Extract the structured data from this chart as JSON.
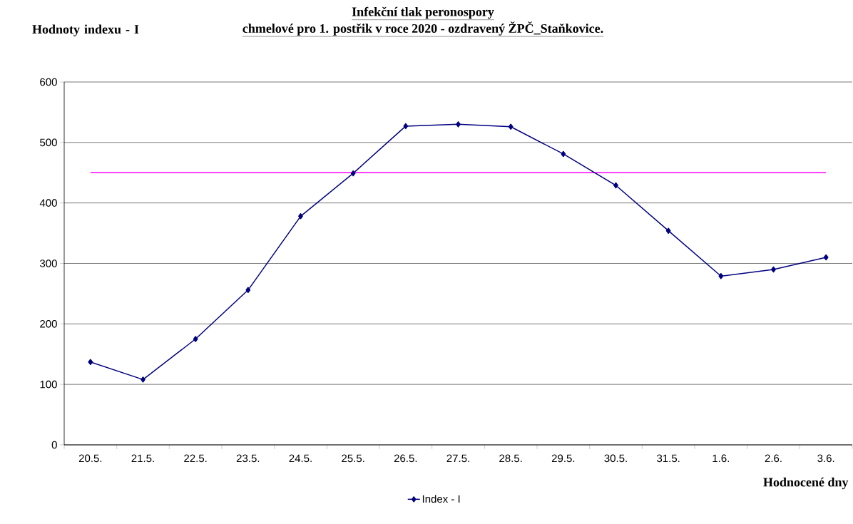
{
  "chart_data": {
    "type": "line",
    "title": "Infekční tlak peronospory",
    "subtitle": "chmelové pro 1. postřik v roce 2020 - ozdravený ŽPČ_Staňkovice.",
    "ylabel": "Hodnoty indexu - I",
    "xlabel": "Hodnocené dny",
    "categories": [
      "20.5.",
      "21.5.",
      "22.5.",
      "23.5.",
      "24.5.",
      "25.5.",
      "26.5.",
      "27.5.",
      "28.5.",
      "29.5.",
      "30.5.",
      "31.5.",
      "1.6.",
      "2.6.",
      "3.6."
    ],
    "series": [
      {
        "name": "Index - I",
        "color": "#00007f",
        "values": [
          137,
          108,
          175,
          256,
          378,
          449,
          527,
          530,
          526,
          481,
          429,
          354,
          279,
          290,
          310
        ]
      }
    ],
    "ref_lines": [
      {
        "axis": "y",
        "value": 450,
        "color": "#ff00ff"
      }
    ],
    "ylim": [
      0,
      600
    ],
    "yticks": [
      0,
      100,
      200,
      300,
      400,
      500,
      600
    ],
    "grid": "y",
    "legend": "bottom",
    "marker": "diamond",
    "line_style": "solid"
  }
}
